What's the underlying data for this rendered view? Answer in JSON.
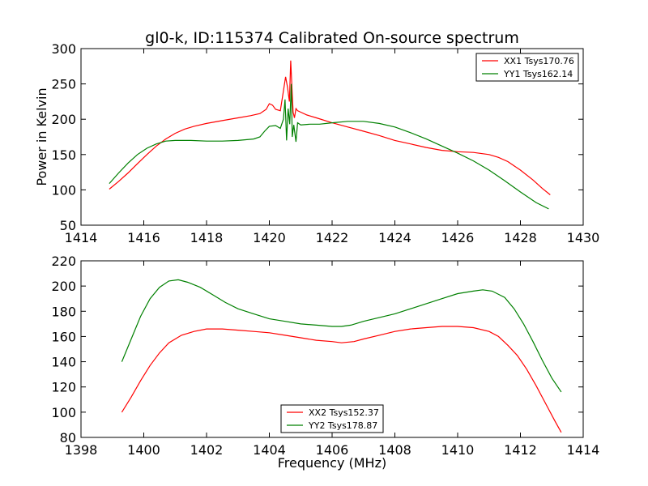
{
  "title": "gl0-k, ID:115374 Calibrated On-source spectrum",
  "chart_data": [
    {
      "type": "line",
      "title": "gl0-k, ID:115374 Calibrated On-source spectrum",
      "xlabel": "",
      "ylabel": "Power in Kelvin",
      "xlim": [
        1414,
        1430
      ],
      "ylim": [
        50,
        300
      ],
      "xticks": [
        1414,
        1416,
        1418,
        1420,
        1422,
        1424,
        1426,
        1428,
        1430
      ],
      "yticks": [
        50,
        100,
        150,
        200,
        250,
        300
      ],
      "legend_position": "top-right",
      "grid": false,
      "series": [
        {
          "name": "XX1 Tsys170.76",
          "color": "#ff0000",
          "x": [
            1414.9,
            1415.2,
            1415.5,
            1415.8,
            1416.1,
            1416.4,
            1416.7,
            1417.0,
            1417.3,
            1417.6,
            1418.0,
            1418.5,
            1419.0,
            1419.4,
            1419.7,
            1419.9,
            1420.0,
            1420.1,
            1420.2,
            1420.35,
            1420.45,
            1420.52,
            1420.58,
            1420.64,
            1420.68,
            1420.72,
            1420.76,
            1420.8,
            1420.85,
            1420.9,
            1421.0,
            1421.2,
            1421.5,
            1422.0,
            1422.5,
            1423.0,
            1423.5,
            1424.0,
            1424.5,
            1425.0,
            1425.5,
            1426.0,
            1426.5,
            1427.0,
            1427.3,
            1427.6,
            1428.0,
            1428.4,
            1428.7,
            1428.95
          ],
          "y": [
            101,
            112,
            124,
            137,
            150,
            162,
            172,
            180,
            186,
            190,
            194,
            198,
            202,
            205,
            208,
            214,
            222,
            220,
            214,
            212,
            240,
            260,
            245,
            225,
            283,
            245,
            210,
            202,
            215,
            212,
            210,
            206,
            202,
            195,
            189,
            183,
            177,
            170,
            165,
            160,
            156,
            154,
            153,
            150,
            146,
            140,
            128,
            114,
            102,
            93
          ]
        },
        {
          "name": "YY1 Tsys162.14",
          "color": "#008000",
          "x": [
            1414.9,
            1415.2,
            1415.5,
            1415.8,
            1416.1,
            1416.4,
            1416.7,
            1417.0,
            1417.5,
            1418.0,
            1418.5,
            1419.0,
            1419.5,
            1419.7,
            1419.85,
            1420.0,
            1420.2,
            1420.35,
            1420.45,
            1420.5,
            1420.55,
            1420.6,
            1420.65,
            1420.7,
            1420.73,
            1420.78,
            1420.85,
            1420.9,
            1421.0,
            1421.3,
            1421.6,
            1422.0,
            1422.5,
            1423.0,
            1423.5,
            1424.0,
            1424.5,
            1425.0,
            1425.5,
            1426.0,
            1426.5,
            1427.0,
            1427.5,
            1428.0,
            1428.5,
            1428.9
          ],
          "y": [
            109,
            124,
            138,
            150,
            159,
            165,
            169,
            170,
            170,
            169,
            169,
            170,
            172,
            175,
            183,
            190,
            191,
            187,
            200,
            228,
            170,
            215,
            193,
            250,
            175,
            192,
            168,
            195,
            192,
            193,
            193,
            195,
            197,
            197,
            194,
            189,
            181,
            172,
            162,
            152,
            141,
            128,
            113,
            97,
            82,
            73
          ]
        }
      ]
    },
    {
      "type": "line",
      "title": "",
      "xlabel": "Frequency (MHz)",
      "ylabel": "",
      "xlim": [
        1398,
        1414
      ],
      "ylim": [
        80,
        220
      ],
      "xticks": [
        1398,
        1400,
        1402,
        1404,
        1406,
        1408,
        1410,
        1412,
        1414
      ],
      "yticks": [
        80,
        100,
        120,
        140,
        160,
        180,
        200,
        220
      ],
      "legend_position": "lower-center",
      "grid": false,
      "series": [
        {
          "name": "XX2 Tsys152.37",
          "color": "#ff0000",
          "x": [
            1399.3,
            1399.6,
            1399.9,
            1400.2,
            1400.5,
            1400.8,
            1401.2,
            1401.6,
            1402.0,
            1402.5,
            1403.0,
            1403.5,
            1404.0,
            1404.5,
            1405.0,
            1405.5,
            1406.0,
            1406.3,
            1406.7,
            1407.0,
            1407.5,
            1408.0,
            1408.5,
            1409.0,
            1409.5,
            1410.0,
            1410.5,
            1411.0,
            1411.3,
            1411.6,
            1411.9,
            1412.2,
            1412.5,
            1412.8,
            1413.1,
            1413.3
          ],
          "y": [
            100,
            112,
            125,
            137,
            147,
            155,
            161,
            164,
            166,
            166,
            165,
            164,
            163,
            161,
            159,
            157,
            156,
            155,
            156,
            158,
            161,
            164,
            166,
            167,
            168,
            168,
            167,
            164,
            160,
            153,
            145,
            134,
            121,
            107,
            93,
            84
          ]
        },
        {
          "name": "YY2 Tsys178.87",
          "color": "#008000",
          "x": [
            1399.3,
            1399.6,
            1399.9,
            1400.2,
            1400.5,
            1400.8,
            1401.1,
            1401.4,
            1401.8,
            1402.2,
            1402.6,
            1403.0,
            1403.5,
            1404.0,
            1404.5,
            1405.0,
            1405.5,
            1406.0,
            1406.3,
            1406.6,
            1407.0,
            1407.5,
            1408.0,
            1408.5,
            1409.0,
            1409.5,
            1410.0,
            1410.5,
            1410.8,
            1411.1,
            1411.5,
            1411.8,
            1412.1,
            1412.4,
            1412.7,
            1413.0,
            1413.3
          ],
          "y": [
            140,
            158,
            176,
            190,
            199,
            204,
            205,
            203,
            199,
            193,
            187,
            182,
            178,
            174,
            172,
            170,
            169,
            168,
            168,
            169,
            172,
            175,
            178,
            182,
            186,
            190,
            194,
            196,
            197,
            196,
            191,
            182,
            170,
            156,
            141,
            127,
            116
          ]
        }
      ]
    }
  ]
}
